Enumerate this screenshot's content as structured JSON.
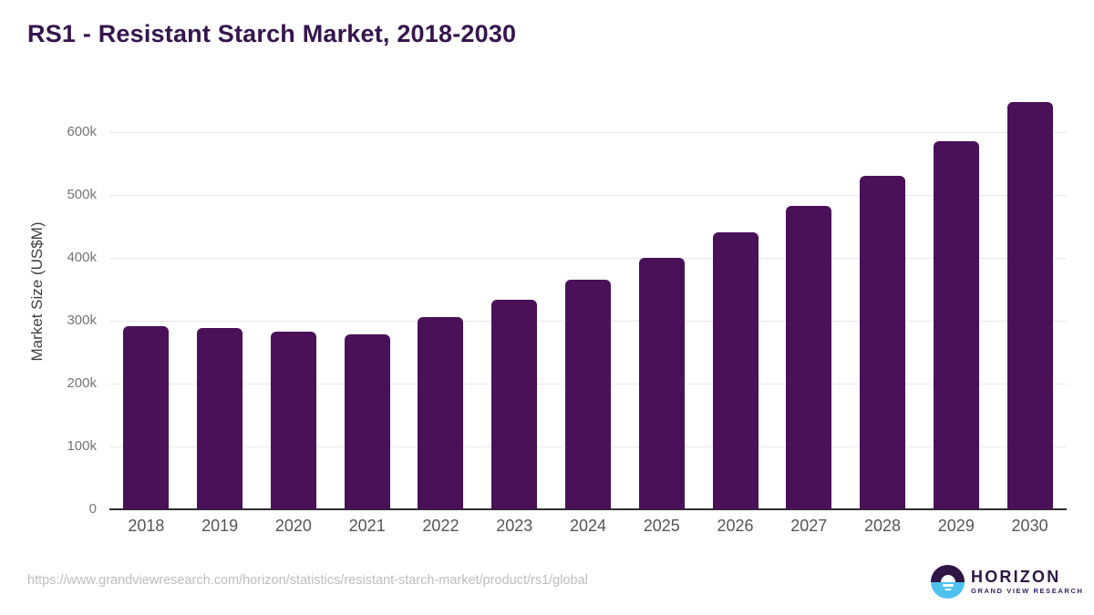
{
  "title": "RS1 - Resistant Starch Market, 2018-2030",
  "source_url": "https://www.grandviewresearch.com/horizon/statistics/resistant-starch-market/product/rs1/global",
  "logo": {
    "name": "HORIZON",
    "subtitle": "GRAND VIEW RESEARCH",
    "icon": "horizon-sun-circle-icon"
  },
  "colors": {
    "bar": "#4a1158",
    "title_text": "#36154e",
    "gridline": "#e9e9e9",
    "axis_line": "#2e2e2e",
    "tick_text": "#757575",
    "x_label_text": "#555555",
    "url_text": "#bdbdbd",
    "logo_purple": "#2e1745",
    "logo_blue": "#4fc1ef"
  },
  "chart_data": {
    "type": "bar",
    "title": "RS1 - Resistant Starch Market, 2018-2030",
    "categories": [
      "2018",
      "2019",
      "2020",
      "2021",
      "2022",
      "2023",
      "2024",
      "2025",
      "2026",
      "2027",
      "2028",
      "2029",
      "2030"
    ],
    "values": [
      292000,
      288000,
      283000,
      279000,
      306000,
      333000,
      365000,
      400000,
      440000,
      482000,
      530000,
      586000,
      648000
    ],
    "xlabel": "",
    "ylabel": "Market Size (US$M)",
    "ytick_labels": [
      "0",
      "100k",
      "200k",
      "300k",
      "400k",
      "500k",
      "600k"
    ],
    "ytick_values": [
      0,
      100000,
      200000,
      300000,
      400000,
      500000,
      600000
    ],
    "ylim": [
      0,
      600000
    ],
    "grid": "horizontal",
    "legend": "none",
    "bar_color": "#4a1158"
  }
}
